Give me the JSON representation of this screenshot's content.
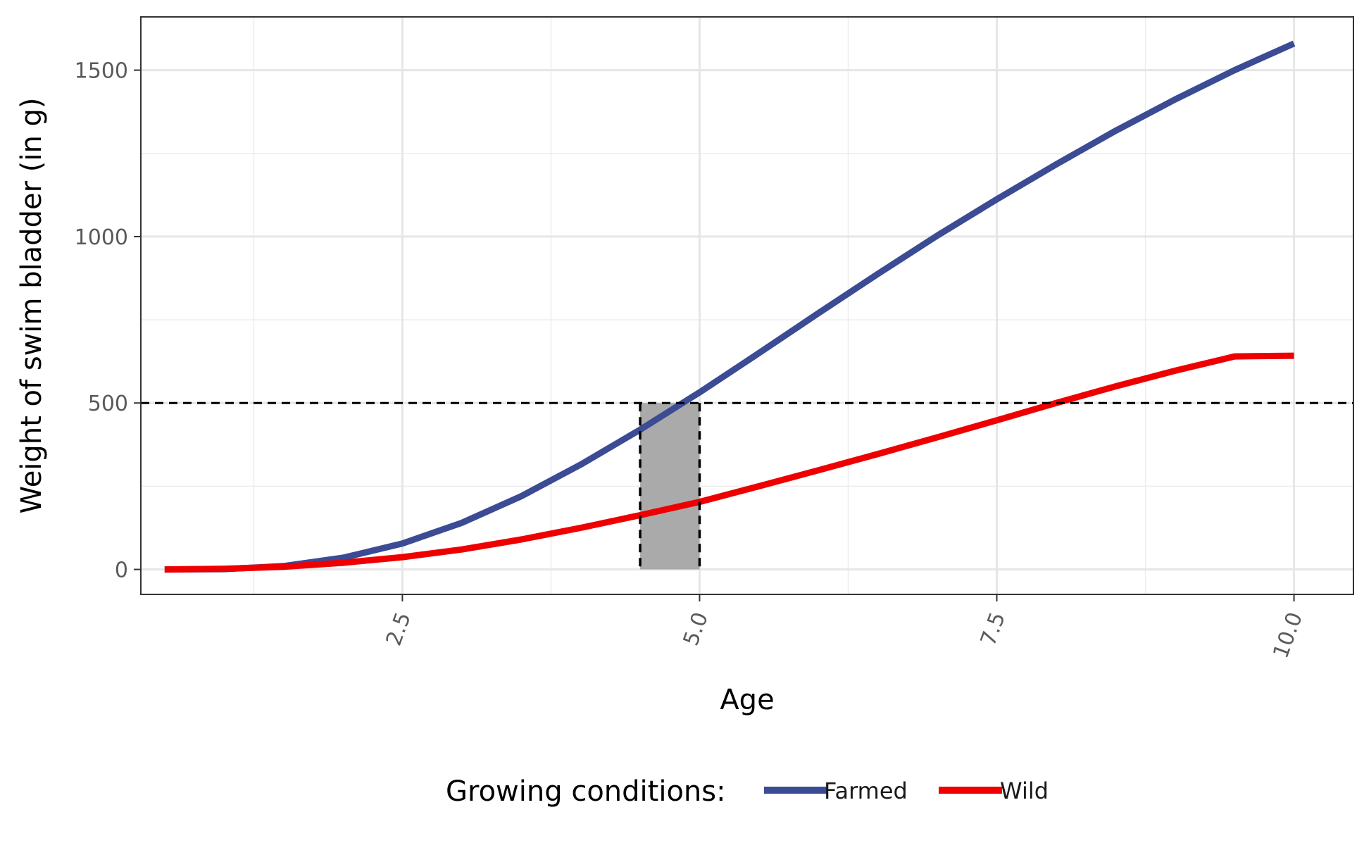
{
  "chart_data": {
    "type": "line",
    "title": "",
    "xlabel": "Age",
    "ylabel": "Weight of swim bladder (in g)",
    "xlim": [
      0.3,
      10.5
    ],
    "ylim": [
      -75,
      1660
    ],
    "x_ticks": [
      2.5,
      5.0,
      7.5,
      10.0
    ],
    "x_tick_labels": [
      "2.5",
      "5.0",
      "7.5",
      "10.0"
    ],
    "y_ticks": [
      0,
      500,
      1000,
      1500
    ],
    "y_tick_labels": [
      "0",
      "500",
      "1000",
      "1500"
    ],
    "grid": true,
    "legend": {
      "title": "Growing conditions:",
      "position": "bottom",
      "entries": [
        "Farmed",
        "Wild"
      ]
    },
    "series": [
      {
        "name": "Farmed",
        "color": "#3b4b94",
        "x": [
          0.5,
          1.0,
          1.5,
          2.0,
          2.5,
          3.0,
          3.5,
          4.0,
          4.5,
          5.0,
          5.5,
          6.0,
          6.5,
          7.0,
          7.5,
          8.0,
          8.5,
          9.0,
          9.5,
          10.0
        ],
        "y": [
          0,
          1,
          10,
          35,
          78,
          140,
          220,
          315,
          420,
          532,
          650,
          770,
          888,
          1003,
          1112,
          1217,
          1318,
          1412,
          1500,
          1580
        ]
      },
      {
        "name": "Wild",
        "color": "#ee0000",
        "x": [
          0.5,
          1.0,
          1.5,
          2.0,
          2.5,
          3.0,
          3.5,
          4.0,
          4.5,
          5.0,
          5.5,
          6.0,
          6.5,
          7.0,
          7.5,
          8.0,
          8.5,
          9.0,
          9.5,
          10.0
        ],
        "y": [
          0,
          2,
          8,
          20,
          37,
          60,
          90,
          125,
          163,
          203,
          250,
          298,
          347,
          397,
          448,
          500,
          550,
          597,
          640,
          642
        ]
      }
    ],
    "annotations": {
      "hline_y": 500,
      "shaded_x_range": [
        4.5,
        5.0
      ],
      "shaded_y_range": [
        0,
        500
      ],
      "shade_color": "#aaaaaa"
    }
  }
}
